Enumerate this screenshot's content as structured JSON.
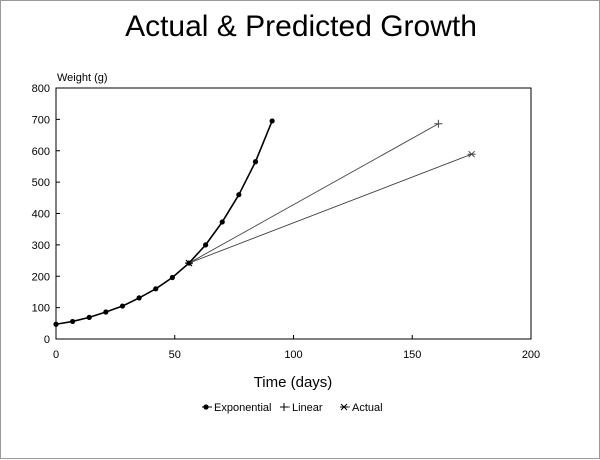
{
  "chart_data": {
    "type": "line",
    "title": "Actual & Predicted Growth",
    "xlabel": "Time (days)",
    "ylabel": "Weight (g)",
    "xlim": [
      0,
      200
    ],
    "ylim": [
      0,
      800
    ],
    "xticks": [
      0,
      50,
      100,
      150,
      200
    ],
    "yticks": [
      0,
      100,
      200,
      300,
      400,
      500,
      600,
      700,
      800
    ],
    "grid": false,
    "legend_position": "bottom-center",
    "series": [
      {
        "name": "Exponential",
        "marker": "dot",
        "color": "#000000",
        "x": [
          0,
          7,
          14,
          21,
          28,
          35,
          42,
          49,
          56,
          63,
          70,
          77,
          84,
          91
        ],
        "y": [
          47,
          56,
          69,
          86,
          105,
          131,
          160,
          196,
          242,
          300,
          373,
          460,
          565,
          695
        ]
      },
      {
        "name": "Linear",
        "marker": "plus",
        "color": "#444444",
        "x": [
          56,
          161
        ],
        "y": [
          242,
          686
        ]
      },
      {
        "name": "Actual",
        "marker": "star",
        "color": "#444444",
        "x": [
          56,
          175
        ],
        "y": [
          242,
          589
        ]
      }
    ]
  }
}
